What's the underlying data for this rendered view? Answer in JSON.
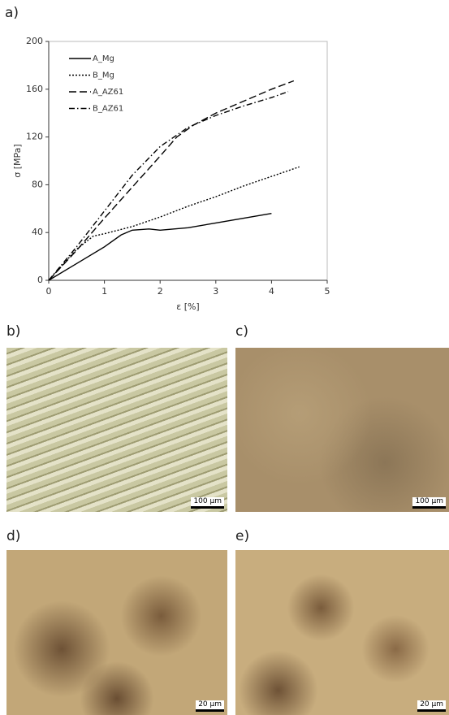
{
  "chart_data": {
    "type": "line",
    "xlabel": "ε [%]",
    "ylabel": "σ [MPa]",
    "xlim": [
      0,
      5
    ],
    "xticks": [
      0,
      1,
      2,
      3,
      4,
      5
    ],
    "ylim": [
      0,
      200
    ],
    "yticks": [
      0,
      40,
      80,
      120,
      160,
      200
    ],
    "legend": "upper left",
    "series": [
      {
        "name": "A_Mg",
        "color": "#000000",
        "dash": "solid",
        "x": [
          0,
          0.5,
          1,
          1.3,
          1.5,
          1.8,
          2,
          2.5,
          3,
          3.5,
          4
        ],
        "values": [
          0,
          14,
          28,
          38,
          42,
          43,
          42,
          44,
          48,
          52,
          56
        ]
      },
      {
        "name": "B_Mg",
        "color": "#000000",
        "dash": "dotted",
        "x": [
          0,
          0.5,
          0.8,
          1,
          1.5,
          2,
          2.5,
          3,
          3.5,
          4,
          4.5
        ],
        "values": [
          0,
          26,
          37,
          39,
          45,
          53,
          62,
          70,
          79,
          87,
          95
        ]
      },
      {
        "name": "A_AZ61",
        "color": "#000000",
        "dash": "dashed",
        "x": [
          0,
          0.5,
          1,
          1.5,
          2,
          2.3,
          2.6,
          3,
          3.5,
          4,
          4.4
        ],
        "values": [
          0,
          25,
          52,
          78,
          104,
          120,
          130,
          140,
          150,
          160,
          167
        ]
      },
      {
        "name": "B_AZ61",
        "color": "#000000",
        "dash": "dashdot",
        "x": [
          0,
          0.5,
          1,
          1.5,
          2,
          2.5,
          3,
          3.5,
          4,
          4.3
        ],
        "values": [
          0,
          28,
          58,
          88,
          112,
          128,
          138,
          146,
          153,
          158
        ]
      }
    ]
  },
  "panels": [
    {
      "label": "a)"
    },
    {
      "label": "b)",
      "scale_bar": "100 µm"
    },
    {
      "label": "c)",
      "scale_bar": "100 µm"
    },
    {
      "label": "d)",
      "scale_bar": "20 µm"
    },
    {
      "label": "e)",
      "scale_bar": "20 µm"
    }
  ]
}
